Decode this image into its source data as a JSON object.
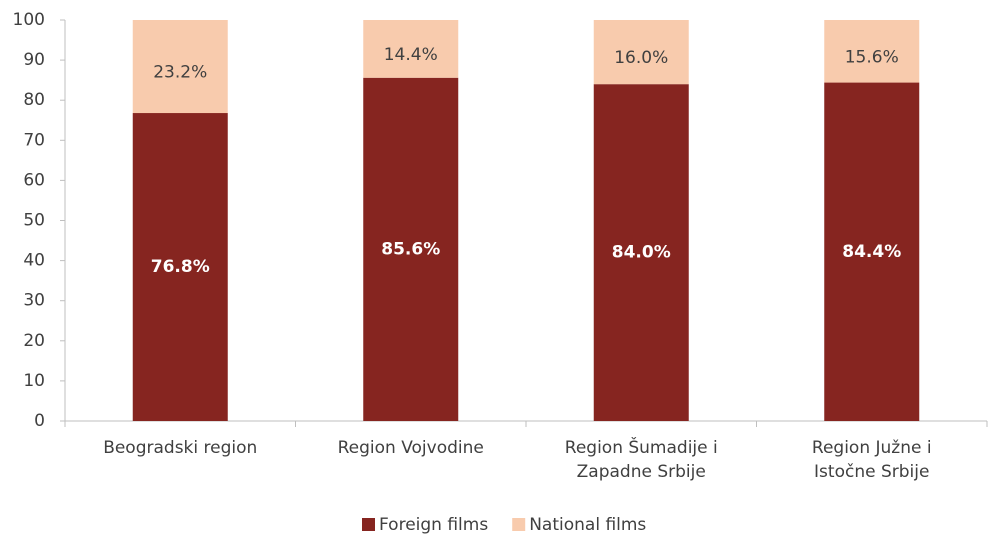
{
  "chart_data": {
    "type": "stacked_bar",
    "categories": [
      "Beogradski region",
      "Region Vojvodine",
      "Region Šumadije i\nZapadne Srbije",
      "Region Južne i\nIstočne Srbije"
    ],
    "series": [
      {
        "name": "Foreign films",
        "color": "#862520",
        "values": [
          76.8,
          85.6,
          84.0,
          84.4
        ],
        "value_labels": [
          "76.8%",
          "85.6%",
          "84.0%",
          "84.4%"
        ]
      },
      {
        "name": "National films",
        "color": "#F8CBAD",
        "values": [
          23.2,
          14.4,
          16.0,
          15.6
        ],
        "value_labels": [
          "23.2%",
          "14.4%",
          "16.0%",
          "15.6%"
        ]
      }
    ],
    "ylim": [
      0,
      100
    ],
    "yticks": [
      0,
      10,
      20,
      30,
      40,
      50,
      60,
      70,
      80,
      90,
      100
    ],
    "grid": false,
    "legend": "bottom"
  }
}
